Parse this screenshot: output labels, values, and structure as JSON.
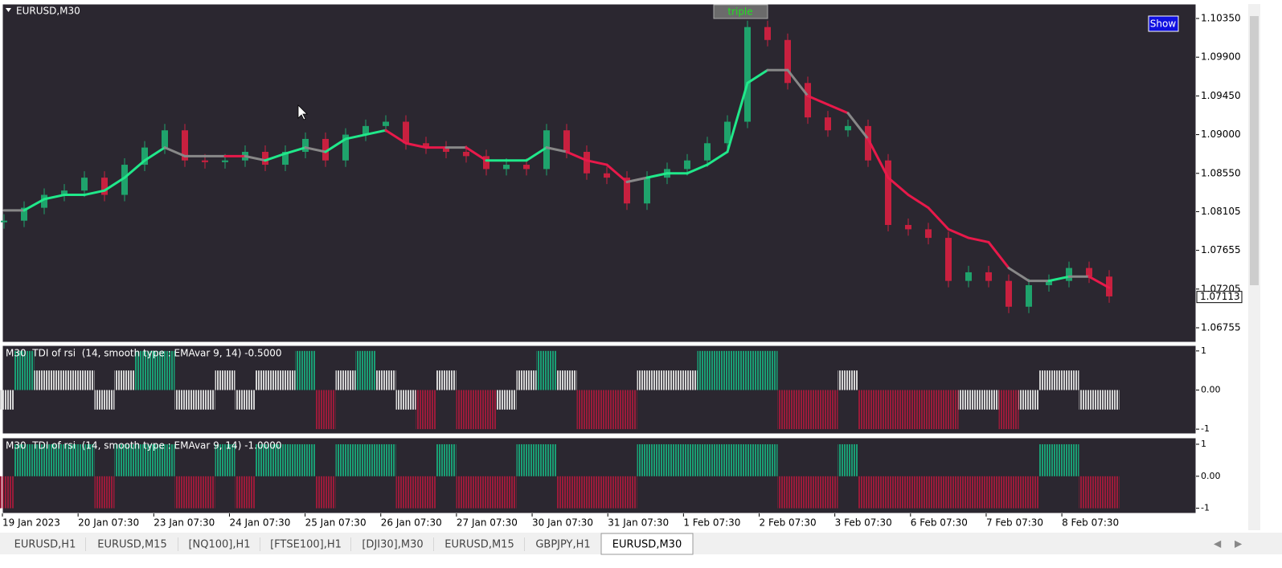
{
  "window": {
    "title": "EURUSD,M30",
    "button_triple": "triple",
    "button_show": "Show",
    "tabs": [
      "EURUSD,H1",
      "EURUSD,M15",
      "[NQ100],H1",
      "[FTSE100],H1",
      "[DJI30],M30",
      "EURUSD,M15",
      "GBPJPY,H1",
      "EURUSD,M30"
    ],
    "active_tab": 7
  },
  "chart_data": [
    {
      "type": "candlestick",
      "title": "EURUSD,M30",
      "x_labels": [
        "19 Jan 2023",
        "20 Jan 07:30",
        "23 Jan 07:30",
        "24 Jan 07:30",
        "25 Jan 07:30",
        "26 Jan 07:30",
        "27 Jan 07:30",
        "30 Jan 07:30",
        "31 Jan 07:30",
        "1 Feb 07:30",
        "2 Feb 07:30",
        "3 Feb 07:30",
        "6 Feb 07:30",
        "7 Feb 07:30",
        "8 Feb 07:30"
      ],
      "ylim": [
        1.06587,
        1.10518
      ],
      "yticks": [
        {
          "value": 1.1035,
          "label": "1.10350"
        },
        {
          "value": 1.099,
          "label": "1.09900"
        },
        {
          "value": 1.0945,
          "label": "1.09450"
        },
        {
          "value": 1.09,
          "label": "1.09000"
        },
        {
          "value": 1.0855,
          "label": "1.08550"
        },
        {
          "value": 1.08105,
          "label": "1.08105"
        },
        {
          "value": 1.07655,
          "label": "1.07655"
        },
        {
          "value": 1.07205,
          "label": "1.07205"
        },
        {
          "value": 1.06755,
          "label": "1.06755"
        }
      ],
      "last_price": 1.07113,
      "up_color": "#1fa36c",
      "down_color": "#c8203f",
      "values": [
        1.08,
        1.0815,
        1.083,
        1.0835,
        1.085,
        1.083,
        1.0865,
        1.0885,
        1.0905,
        1.087,
        1.0868,
        1.087,
        1.088,
        1.0865,
        1.088,
        1.0895,
        1.087,
        1.09,
        1.091,
        1.0915,
        1.089,
        1.0885,
        1.088,
        1.0875,
        1.086,
        1.0865,
        1.086,
        1.0905,
        1.088,
        1.0855,
        1.085,
        1.082,
        1.085,
        1.086,
        1.087,
        1.089,
        1.0915,
        1.1025,
        1.101,
        1.096,
        1.092,
        1.0905,
        1.091,
        1.087,
        1.0795,
        1.079,
        1.078,
        1.073,
        1.074,
        1.073,
        1.07,
        1.0725,
        1.073,
        1.0745,
        1.0735,
        1.0712
      ],
      "trend": {
        "values": [
          1.0812,
          1.0812,
          1.0825,
          1.083,
          1.083,
          1.0835,
          1.085,
          1.087,
          1.0885,
          1.0875,
          1.0875,
          1.0875,
          1.0875,
          1.087,
          1.0878,
          1.0885,
          1.088,
          1.0895,
          1.09,
          1.0905,
          1.089,
          1.0885,
          1.0885,
          1.0885,
          1.087,
          1.087,
          1.087,
          1.0885,
          1.088,
          1.087,
          1.0865,
          1.0845,
          1.085,
          1.0855,
          1.0855,
          1.0865,
          1.088,
          1.096,
          1.0975,
          1.0975,
          1.0945,
          1.0935,
          1.0925,
          1.0895,
          1.085,
          1.083,
          1.0815,
          1.079,
          1.078,
          1.0775,
          1.0745,
          1.073,
          1.073,
          1.0735,
          1.0735,
          1.0722
        ],
        "colors": [
          "#e8194a",
          "#888888",
          "#20e88a",
          "#20e88a",
          "#20e88a",
          "#20e88a",
          "#20e88a",
          "#20e88a",
          "#20e88a",
          "#888888",
          "#888888",
          "#888888",
          "#e8194a",
          "#888888",
          "#20e88a",
          "#20e88a",
          "#888888",
          "#20e88a",
          "#20e88a",
          "#20e88a",
          "#e8194a",
          "#e8194a",
          "#e8194a",
          "#888888",
          "#e8194a",
          "#20e88a",
          "#20e88a",
          "#20e88a",
          "#888888",
          "#e8194a",
          "#e8194a",
          "#e8194a",
          "#888888",
          "#20e88a",
          "#20e88a",
          "#20e88a",
          "#20e88a",
          "#20e88a",
          "#20e88a",
          "#888888",
          "#888888",
          "#e8194a",
          "#e8194a",
          "#888888",
          "#e8194a",
          "#e8194a",
          "#e8194a",
          "#e8194a",
          "#e8194a",
          "#e8194a",
          "#e8194a",
          "#888888",
          "#888888",
          "#20e88a",
          "#888888",
          "#e8194a"
        ]
      }
    },
    {
      "type": "bar",
      "title": "M30  TDI of rsi  (14, smooth type : EMAvar 9, 14) -0.5000",
      "ylim": [
        -1.12,
        1.14
      ],
      "yticks": [
        1,
        {
          "value": 0,
          "label": "0.00"
        },
        -1
      ],
      "colors": {
        "1": "#1a9e74",
        "0.5": "#d4d4d4",
        "-0.5": "#d4d4d4",
        "-1": "#9b1b3a"
      },
      "values": [
        -0.5,
        1,
        0.5,
        0.5,
        0.5,
        -0.5,
        0.5,
        1,
        1,
        -0.5,
        -0.5,
        0.5,
        -0.5,
        0.5,
        0.5,
        1,
        -1,
        0.5,
        1,
        0.5,
        -0.5,
        -1,
        0.5,
        -1,
        -1,
        -0.5,
        0.5,
        1,
        0.5,
        -1,
        -1,
        -1,
        0.5,
        0.5,
        0.5,
        1,
        1,
        1,
        1,
        -1,
        -1,
        -1,
        0.5,
        -1,
        -1,
        -1,
        -1,
        -1,
        -0.5,
        -0.5,
        -1,
        -0.5,
        0.5,
        0.5,
        -0.5,
        -0.5
      ]
    },
    {
      "type": "bar",
      "title": "M30  TDI of rsi  (14, smooth type : EMAvar 9, 14) -1.0000",
      "ylim": [
        -1.16,
        1.2
      ],
      "yticks": [
        1,
        {
          "value": 0,
          "label": "0.00"
        },
        -1
      ],
      "colors": {
        "1": "#1a9e74",
        "-1": "#9b1b3a"
      },
      "values": [
        -1,
        1,
        1,
        1,
        1,
        -1,
        1,
        1,
        1,
        -1,
        -1,
        1,
        -1,
        1,
        1,
        1,
        -1,
        1,
        1,
        1,
        -1,
        -1,
        1,
        -1,
        -1,
        -1,
        1,
        1,
        -1,
        -1,
        -1,
        -1,
        1,
        1,
        1,
        1,
        1,
        1,
        1,
        -1,
        -1,
        -1,
        1,
        -1,
        -1,
        -1,
        -1,
        -1,
        -1,
        -1,
        -1,
        -1,
        1,
        1,
        -1,
        -1
      ]
    }
  ]
}
